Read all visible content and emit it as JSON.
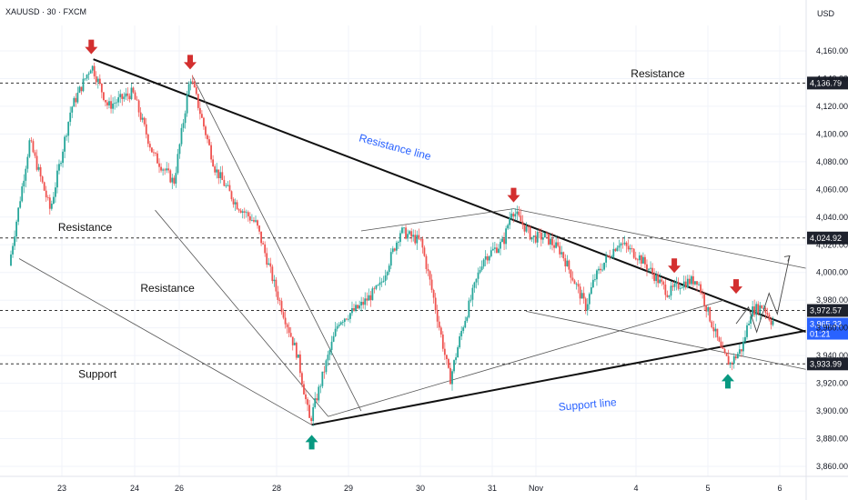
{
  "header": {
    "symbol_label": "XAUUSD · 30 · FXCM",
    "currency": "USD"
  },
  "chart_data": {
    "type": "candlestick",
    "ylim": [
      3850,
      4175
    ],
    "y_ticks": [
      4160,
      4140,
      4120,
      4100,
      4080,
      4060,
      4040,
      4020,
      4000,
      3980,
      3960,
      3940,
      3920,
      3900,
      3880,
      3860
    ],
    "y_tick_labels": [
      "4,160.00",
      "4,140.00",
      "4,120.00",
      "4,100.00",
      "4,080.00",
      "4,060.00",
      "4,040.00",
      "4,020.00",
      "4,000.00",
      "3,980.00",
      "3,960.00",
      "3,940.00",
      "3,920.00",
      "3,900.00",
      "3,880.00",
      "3,860.00"
    ],
    "x_labels": [
      "23",
      "24",
      "26",
      "28",
      "29",
      "30",
      "31",
      "Nov",
      "4",
      "5",
      "6"
    ],
    "horizontal_levels": [
      {
        "price": 4136.79,
        "label": "4,136.79"
      },
      {
        "price": 4024.92,
        "label": "4,024.92"
      },
      {
        "price": 3972.57,
        "label": "3,972.57"
      },
      {
        "price": 3933.99,
        "label": "3,933.99"
      }
    ],
    "current_price": {
      "price": 3965.33,
      "label": "3,965.33",
      "countdown": "01:21",
      "color": "#2962ff"
    },
    "price_path": [
      [
        0.0,
        4005
      ],
      [
        0.5,
        4095
      ],
      [
        1.0,
        4045
      ],
      [
        1.5,
        4118
      ],
      [
        2.0,
        4150
      ],
      [
        2.4,
        4120
      ],
      [
        3.0,
        4130
      ],
      [
        3.5,
        4085
      ],
      [
        4.0,
        4065
      ],
      [
        4.4,
        4142
      ],
      [
        5.0,
        4075
      ],
      [
        5.5,
        4050
      ],
      [
        6.0,
        4035
      ],
      [
        6.5,
        3985
      ],
      [
        7.0,
        3940
      ],
      [
        7.3,
        3892
      ],
      [
        7.7,
        3935
      ],
      [
        8.0,
        3965
      ],
      [
        8.5,
        3975
      ],
      [
        9.0,
        3990
      ],
      [
        9.5,
        4030
      ],
      [
        10.0,
        4022
      ],
      [
        10.3,
        3982
      ],
      [
        10.7,
        3922
      ],
      [
        11.0,
        3960
      ],
      [
        11.5,
        4010
      ],
      [
        12.0,
        4022
      ],
      [
        12.2,
        4046
      ],
      [
        12.7,
        4025
      ],
      [
        13.0,
        4026
      ],
      [
        13.4,
        4015
      ],
      [
        14.0,
        3975
      ],
      [
        14.2,
        3995
      ],
      [
        14.5,
        4010
      ],
      [
        14.8,
        4022
      ],
      [
        15.3,
        4011
      ],
      [
        15.6,
        4000
      ],
      [
        16.0,
        3985
      ],
      [
        16.3,
        3992
      ],
      [
        16.7,
        3995
      ],
      [
        17.0,
        3968
      ],
      [
        17.3,
        3942
      ],
      [
        17.5,
        3934
      ],
      [
        17.8,
        3946
      ],
      [
        18.0,
        3972
      ],
      [
        18.3,
        3976
      ],
      [
        18.5,
        3965
      ]
    ],
    "candle_colors": {
      "up": "#26a69a",
      "down": "#ef5350"
    },
    "annotations": [
      {
        "text": "Resistance",
        "price": 4141,
        "x": 15.7,
        "style": "plain"
      },
      {
        "text": "Resistance",
        "price": 4030,
        "x": 1.8,
        "style": "plain"
      },
      {
        "text": "Resistance",
        "price": 3986,
        "x": 3.8,
        "style": "plain"
      },
      {
        "text": "Support",
        "price": 3924,
        "x": 2.1,
        "style": "plain"
      },
      {
        "text": "Resistance line",
        "price": 4088,
        "x": 9.3,
        "style": "blue",
        "rotate": 15
      },
      {
        "text": "Support line",
        "price": 3902,
        "x": 14.0,
        "style": "blue",
        "rotate": -5
      }
    ],
    "trend_lines": [
      {
        "from": [
          2.0,
          4154
        ],
        "to": [
          19.3,
          3957
        ],
        "style": "bold"
      },
      {
        "from": [
          7.3,
          3890
        ],
        "to": [
          19.3,
          3958
        ],
        "style": "bold"
      },
      {
        "from": [
          0.2,
          4010
        ],
        "to": [
          7.3,
          3890
        ],
        "style": "thin"
      },
      {
        "from": [
          4.4,
          4142
        ],
        "to": [
          8.5,
          3900
        ],
        "style": "thin"
      },
      {
        "from": [
          3.5,
          4045
        ],
        "to": [
          7.7,
          3896
        ],
        "style": "thin"
      },
      {
        "from": [
          7.7,
          3896
        ],
        "to": [
          17.3,
          3980
        ],
        "style": "thin"
      },
      {
        "from": [
          8.5,
          4030
        ],
        "to": [
          12.2,
          4046
        ],
        "style": "thin"
      },
      {
        "from": [
          12.2,
          4046
        ],
        "to": [
          19.3,
          4003
        ],
        "style": "thin"
      },
      {
        "from": [
          12.5,
          3972
        ],
        "to": [
          19.3,
          3930
        ],
        "style": "thin"
      }
    ],
    "projection_path": [
      [
        17.6,
        3963
      ],
      [
        17.9,
        3975
      ],
      [
        18.1,
        3957
      ],
      [
        18.4,
        3985
      ],
      [
        18.6,
        3970
      ],
      [
        18.9,
        4012
      ]
    ],
    "markers": [
      {
        "type": "down",
        "x": 1.95,
        "price": 4155,
        "color": "#d32f2f"
      },
      {
        "type": "down",
        "x": 4.35,
        "price": 4144,
        "color": "#d32f2f"
      },
      {
        "type": "down",
        "x": 12.2,
        "price": 4048,
        "color": "#d32f2f"
      },
      {
        "type": "down",
        "x": 16.1,
        "price": 3997,
        "color": "#d32f2f"
      },
      {
        "type": "down",
        "x": 17.6,
        "price": 3982,
        "color": "#d32f2f"
      },
      {
        "type": "up",
        "x": 7.3,
        "price": 3888,
        "color": "#089981"
      },
      {
        "type": "up",
        "x": 17.4,
        "price": 3932,
        "color": "#089981"
      }
    ]
  }
}
